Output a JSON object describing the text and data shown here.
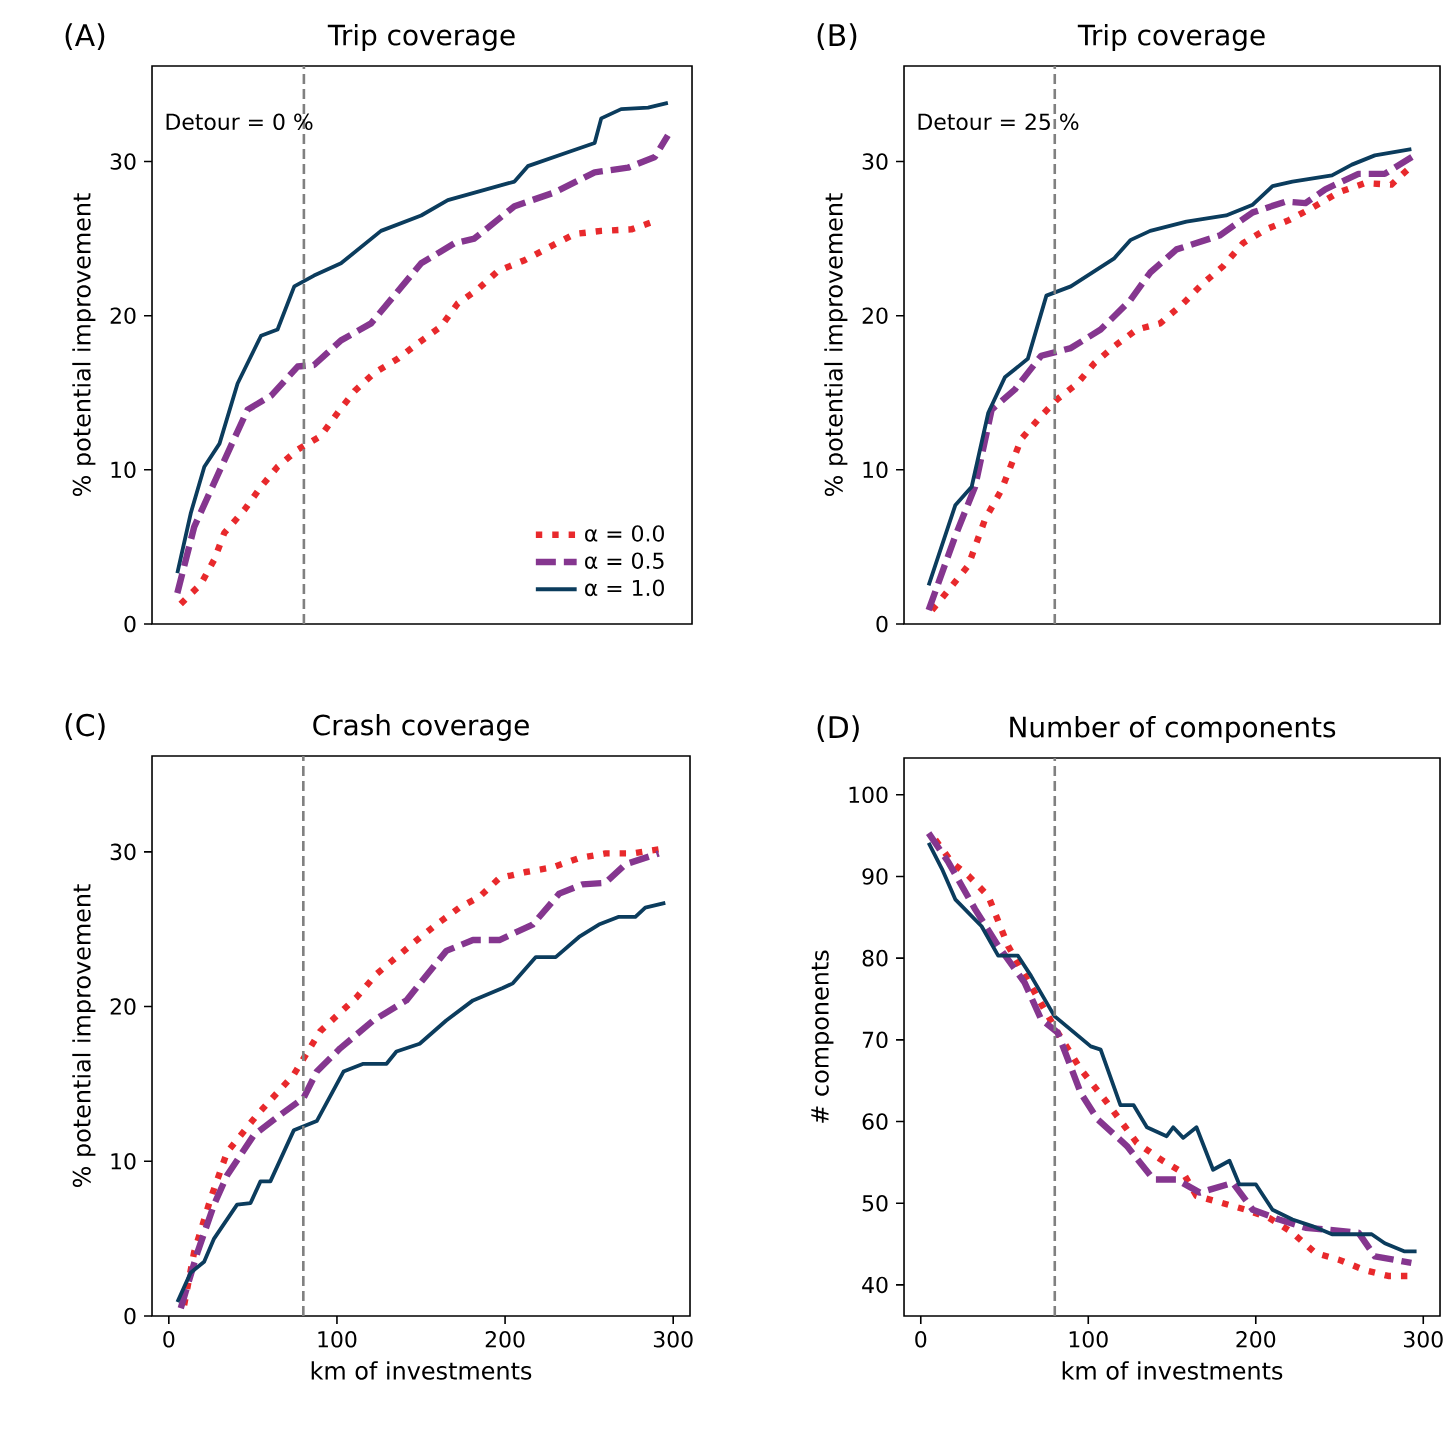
{
  "chart_data": [
    {
      "type": "line",
      "title": "Trip coverage",
      "ylabel": "% potential improvement",
      "annotations": [
        "(A)",
        "Detour = 0 %"
      ],
      "xlim": [
        -10,
        310
      ],
      "ylim": [
        0,
        36.2
      ],
      "yticks": [
        0,
        10,
        20,
        30
      ],
      "tick_labels": "y",
      "legend": "bottom right",
      "marker": "none",
      "ref_lines": [
        {
          "axis": "x",
          "value": 80,
          "color": "#808080",
          "line_style": "dashed"
        }
      ],
      "series": [
        {
          "name": "α = 0.0",
          "color": "#e8292c",
          "line_style": "dotted",
          "x": [
            7,
            19,
            27,
            32.8,
            44.7,
            54.6,
            64.4,
            76.3,
            90,
            100,
            110,
            121.8,
            135.6,
            147.5,
            161.3,
            171.2,
            183,
            195,
            210.8,
            224.6,
            240.5,
            256.2,
            274,
            289.8
          ],
          "values": [
            1.3,
            2.6,
            4.2,
            5.9,
            7.4,
            8.9,
            10.2,
            11.3,
            12.2,
            13.7,
            15.1,
            16.3,
            17.2,
            18.2,
            19.3,
            20.8,
            21.7,
            22.9,
            23.6,
            24.4,
            25.3,
            25.5,
            25.6,
            26.2
          ]
        },
        {
          "name": "α = 0.5",
          "color": "#85368f",
          "line_style": "dashed",
          "x": [
            5,
            15,
            32.8,
            46.6,
            60.5,
            76.3,
            86,
            102,
            119.8,
            149.5,
            169.3,
            181,
            204.8,
            228.6,
            252.3,
            272,
            288,
            295.7
          ],
          "values": [
            2.0,
            6.3,
            10.6,
            13.9,
            14.8,
            16.7,
            16.8,
            18.4,
            19.5,
            23.4,
            24.7,
            25.0,
            27.1,
            28.0,
            29.3,
            29.6,
            30.3,
            31.7
          ]
        },
        {
          "name": "α = 1.0",
          "color": "#0b3c5d",
          "line_style": "solid",
          "x": [
            5,
            13,
            21,
            30,
            40.7,
            54.6,
            64.4,
            74.3,
            86,
            102,
            125.7,
            149.5,
            165.3,
            204.8,
            212.7,
            236.4,
            252.3,
            256.2,
            268,
            284,
            295.7
          ],
          "values": [
            3.3,
            7.2,
            10.2,
            11.7,
            15.6,
            18.7,
            19.1,
            21.9,
            22.6,
            23.4,
            25.5,
            26.5,
            27.5,
            28.7,
            29.7,
            30.6,
            31.2,
            32.8,
            33.4,
            33.5,
            33.8
          ]
        }
      ]
    },
    {
      "type": "line",
      "title": "Trip coverage",
      "ylabel": "% potential improvement",
      "annotations": [
        "(B)",
        "Detour = 25 %"
      ],
      "xlim": [
        -10,
        310
      ],
      "ylim": [
        0,
        36.2
      ],
      "yticks": [
        0,
        10,
        20,
        30
      ],
      "tick_labels": "y",
      "marker": "none",
      "ref_lines": [
        {
          "axis": "x",
          "value": 80,
          "color": "#808080",
          "line_style": "dashed"
        }
      ],
      "series": [
        {
          "color": "#e8292c",
          "line_style": "dotted",
          "x": [
            6.7,
            16.6,
            28.4,
            38.4,
            48.2,
            60,
            71.9,
            81.7,
            93.5,
            103.5,
            115.3,
            129,
            142.9,
            156.7,
            168.6,
            180.4,
            192.3,
            206,
            219.8,
            233.7,
            249.4,
            265.2,
            281,
            292.9
          ],
          "values": [
            0.9,
            2.2,
            3.8,
            6.8,
            8.7,
            12.0,
            13.5,
            14.6,
            15.6,
            16.9,
            18.0,
            19.1,
            19.5,
            20.8,
            22.1,
            23.2,
            24.7,
            25.6,
            26.2,
            27.0,
            28.0,
            28.6,
            28.5,
            29.7
          ]
        },
        {
          "color": "#85368f",
          "line_style": "dashed",
          "x": [
            4.7,
            20.6,
            32.4,
            42.3,
            56.1,
            71.9,
            89.6,
            107.4,
            125.1,
            137,
            152.7,
            178.4,
            198.2,
            217.8,
            229.7,
            241.5,
            261.3,
            277,
            294.8
          ],
          "values": [
            0.9,
            5.7,
            8.9,
            13.9,
            15.2,
            17.4,
            17.9,
            19.1,
            21.0,
            22.8,
            24.3,
            25.2,
            26.7,
            27.4,
            27.3,
            28.2,
            29.2,
            29.2,
            30.4
          ]
        },
        {
          "color": "#0b3c5d",
          "line_style": "solid",
          "x": [
            4.7,
            20.6,
            30.4,
            40.3,
            50.2,
            63.9,
            75,
            89.6,
            115.3,
            125.1,
            137,
            158.6,
            182.3,
            198.2,
            210,
            221.9,
            245.5,
            257.4,
            271.1,
            292.9
          ],
          "values": [
            2.5,
            7.7,
            8.9,
            13.7,
            16.0,
            17.2,
            21.3,
            21.9,
            23.7,
            24.9,
            25.5,
            26.1,
            26.5,
            27.2,
            28.4,
            28.7,
            29.1,
            29.8,
            30.4,
            30.8
          ]
        }
      ]
    },
    {
      "type": "line",
      "title": "Crash coverage",
      "ylabel": "% potential improvement",
      "xlabel": "km of investments",
      "annotations": [
        "(C)"
      ],
      "xlim": [
        -10,
        310
      ],
      "xticks": [
        0,
        100,
        200,
        300
      ],
      "ylim": [
        0,
        36.2
      ],
      "yticks": [
        0,
        10,
        20,
        30
      ],
      "marker": "none",
      "ref_lines": [
        {
          "axis": "x",
          "value": 80,
          "color": "#808080",
          "line_style": "dashed"
        }
      ],
      "series": [
        {
          "color": "#e8292c",
          "line_style": "dotted",
          "x": [
            9.1,
            15,
            24.9,
            34.7,
            52.5,
            74.3,
            90,
            111.7,
            123.5,
            145.3,
            159.1,
            172.9,
            184.8,
            196.6,
            212.4,
            228.2,
            244,
            259.7,
            275.6,
            293.4
          ],
          "values": [
            0.7,
            4.1,
            7.6,
            10.6,
            13.0,
            15.6,
            18.4,
            20.6,
            22.1,
            24.1,
            25.3,
            26.4,
            27.1,
            28.3,
            28.7,
            29.0,
            29.6,
            29.9,
            29.9,
            30.2
          ]
        },
        {
          "color": "#85368f",
          "line_style": "dashed",
          "x": [
            7.1,
            17,
            26.9,
            34.7,
            50.6,
            66.3,
            80.2,
            88,
            101.9,
            121.6,
            141.3,
            165,
            180.9,
            196.6,
            216.4,
            232.2,
            246,
            259.7,
            271.6,
            291.4
          ],
          "values": [
            0.5,
            4.1,
            7.2,
            9.1,
            11.7,
            13.0,
            14.1,
            15.8,
            17.3,
            19.1,
            20.4,
            23.6,
            24.3,
            24.3,
            25.3,
            27.3,
            27.9,
            28.0,
            29.2,
            29.9
          ]
        },
        {
          "color": "#0b3c5d",
          "line_style": "solid",
          "x": [
            5.1,
            13,
            21,
            26.9,
            40.6,
            48.6,
            54.5,
            60.4,
            74.3,
            88,
            103.9,
            115.7,
            129.5,
            135.4,
            149.2,
            165,
            180.9,
            198.6,
            204.6,
            218.3,
            230.1,
            244,
            255.8,
            267.7,
            277.5,
            283.4,
            295.3
          ],
          "values": [
            0.9,
            2.8,
            3.5,
            5.0,
            7.2,
            7.3,
            8.7,
            8.7,
            12.0,
            12.6,
            15.8,
            16.3,
            16.3,
            17.1,
            17.6,
            19.1,
            20.4,
            21.2,
            21.5,
            23.2,
            23.2,
            24.5,
            25.3,
            25.8,
            25.8,
            26.4,
            26.7
          ]
        }
      ]
    },
    {
      "type": "line",
      "title": "Number of components",
      "ylabel": "# components",
      "xlabel": "km of investments",
      "annotations": [
        "(D)"
      ],
      "xlim": [
        -10,
        310
      ],
      "xticks": [
        0,
        100,
        200,
        300
      ],
      "ylim": [
        36.2,
        104.5
      ],
      "yticks": [
        40,
        50,
        60,
        70,
        80,
        90,
        100
      ],
      "marker": "none",
      "ref_lines": [
        {
          "axis": "x",
          "value": 80,
          "color": "#808080",
          "line_style": "dashed"
        }
      ],
      "series": [
        {
          "color": "#e8292c",
          "line_style": "dotted",
          "x": [
            8.7,
            18.6,
            28.4,
            40.3,
            52.1,
            68,
            81.7,
            95.5,
            111.3,
            129,
            142.9,
            156.7,
            164.6,
            180.4,
            194.2,
            208,
            221.9,
            235.6,
            249.4,
            265.2,
            279.1,
            292.9
          ],
          "values": [
            94.5,
            91.7,
            90.1,
            87.6,
            81.5,
            75.8,
            70.9,
            66.4,
            62.3,
            57.4,
            55.4,
            53.7,
            50.9,
            50.0,
            49.2,
            48.2,
            46.4,
            43.9,
            43.1,
            41.8,
            41.1,
            41.1
          ]
        },
        {
          "color": "#85368f",
          "line_style": "dashed",
          "x": [
            4.7,
            16.6,
            32.4,
            46.2,
            62,
            71.9,
            81.7,
            95.5,
            105.4,
            123.1,
            139,
            152.7,
            166.6,
            186.3,
            198.2,
            213.9,
            229.7,
            261.3,
            271.1,
            292.9
          ],
          "values": [
            95.3,
            91.7,
            86.0,
            81.5,
            77.0,
            72.5,
            70.9,
            63.5,
            60.3,
            57.0,
            52.9,
            52.9,
            51.3,
            52.5,
            49.2,
            48.0,
            47.0,
            46.4,
            43.5,
            42.7
          ]
        },
        {
          "color": "#0b3c5d",
          "line_style": "solid",
          "x": [
            4.7,
            12.7,
            20.6,
            36.3,
            46.2,
            58,
            65.9,
            79.8,
            101.5,
            107.4,
            119.2,
            127.1,
            135,
            146.8,
            150.7,
            156.7,
            164.6,
            174.5,
            184.3,
            190.2,
            200.1,
            210,
            221.9,
            233.7,
            245.5,
            269.2,
            277,
            288.9,
            296
          ],
          "values": [
            94.1,
            90.9,
            87.2,
            83.9,
            80.3,
            80.3,
            77.8,
            72.9,
            69.2,
            68.8,
            62.0,
            62.0,
            59.3,
            58.2,
            59.3,
            58.0,
            59.3,
            54.1,
            55.2,
            52.3,
            52.3,
            49.2,
            48.0,
            47.2,
            46.2,
            46.2,
            45.1,
            44.1,
            44.1
          ]
        }
      ]
    }
  ]
}
